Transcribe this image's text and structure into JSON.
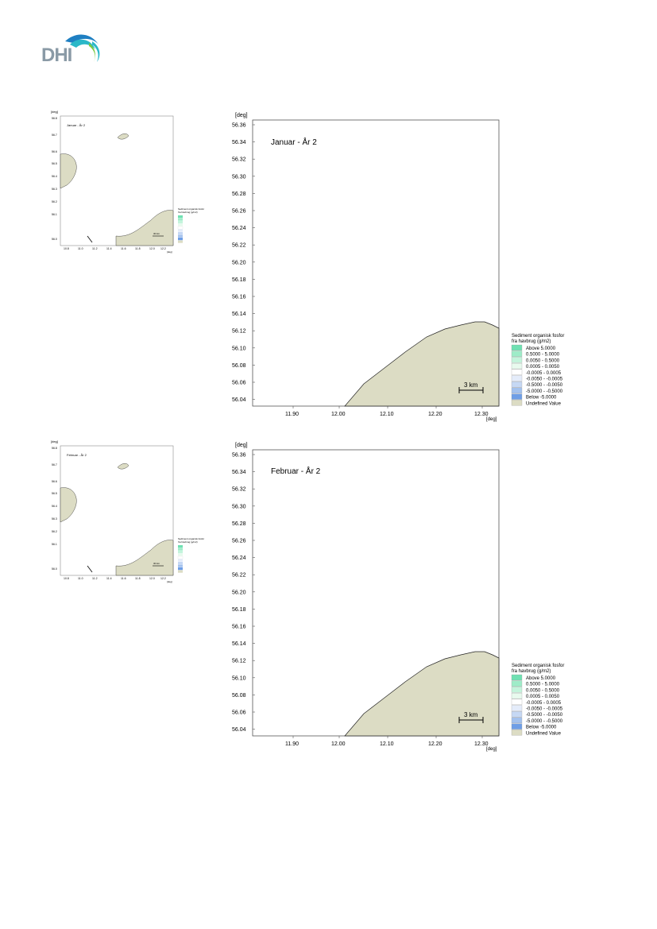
{
  "brand": {
    "logo_text": "DHI",
    "colors": {
      "logo_gray": "#8a9aa6",
      "logo_blue": "#1e7fc2",
      "logo_teal": "#2bb8c8",
      "logo_green": "#7ac943"
    }
  },
  "colors": {
    "land": "#dcdcc4",
    "land_stroke": "#222222",
    "frame": "#555555"
  },
  "axis": {
    "unit": "[deg]"
  },
  "legend": {
    "title_line1": "Sediment organisk fosfor",
    "title_line2": "fra havbrug (g/m2)",
    "items": [
      {
        "color": "#6fe0b2",
        "label": "Above    5.0000"
      },
      {
        "color": "#9eecc8",
        "label": "0.5000 -  5.0000"
      },
      {
        "color": "#c4f4dc",
        "label": "0.0050 -  0.5000"
      },
      {
        "color": "#e8faee",
        "label": "0.0005 -  0.0050"
      },
      {
        "color": "#ffffff",
        "label": "-0.0005 -  0.0005"
      },
      {
        "color": "#e4ecfa",
        "label": "-0.0050 - -0.0005"
      },
      {
        "color": "#c6d8f4",
        "label": "-0.5000 - -0.0050"
      },
      {
        "color": "#a4c2ee",
        "label": "-5.0000 - -0.5000"
      },
      {
        "color": "#6e9ee6",
        "label": "Below    -5.0000"
      },
      {
        "color": "#dcdcc4",
        "label": "Undefined Value"
      }
    ]
  },
  "scale_bar": {
    "label": "3 km"
  },
  "thumb_scale_bar": {
    "label": "30 km"
  },
  "panels": [
    {
      "title": "Januar - År 2",
      "yticks": [
        "56.36",
        "56.34",
        "56.32",
        "56.30",
        "56.28",
        "56.26",
        "56.24",
        "56.22",
        "56.20",
        "56.18",
        "56.16",
        "56.14",
        "56.12",
        "56.10",
        "56.08",
        "56.06",
        "56.04"
      ],
      "xticks": [
        "11.90",
        "12.00",
        "12.10",
        "12.20",
        "12.30"
      ]
    },
    {
      "title": "Februar - År 2",
      "yticks": [
        "56.36",
        "56.34",
        "56.32",
        "56.30",
        "56.28",
        "56.26",
        "56.24",
        "56.22",
        "56.20",
        "56.18",
        "56.16",
        "56.14",
        "56.12",
        "56.10",
        "56.08",
        "56.06",
        "56.04"
      ],
      "xticks": [
        "11.90",
        "12.00",
        "12.10",
        "12.20",
        "12.30"
      ]
    }
  ],
  "thumbs": [
    {
      "title": "Januar - År 2",
      "yticks": [
        "56.8",
        "56.7",
        "56.6",
        "56.5",
        "56.4",
        "56.3",
        "56.2",
        "56.1",
        "56.0"
      ],
      "xticks": [
        "10.8",
        "11.0",
        "11.2",
        "11.4",
        "11.6",
        "11.8",
        "12.0",
        "12.2"
      ]
    },
    {
      "title": "Februar - År 2",
      "yticks": [
        "56.8",
        "56.7",
        "56.6",
        "56.5",
        "56.4",
        "56.3",
        "56.2",
        "56.1",
        "56.0"
      ],
      "xticks": [
        "10.8",
        "11.0",
        "11.2",
        "11.4",
        "11.6",
        "11.8",
        "12.0",
        "12.2"
      ]
    }
  ]
}
